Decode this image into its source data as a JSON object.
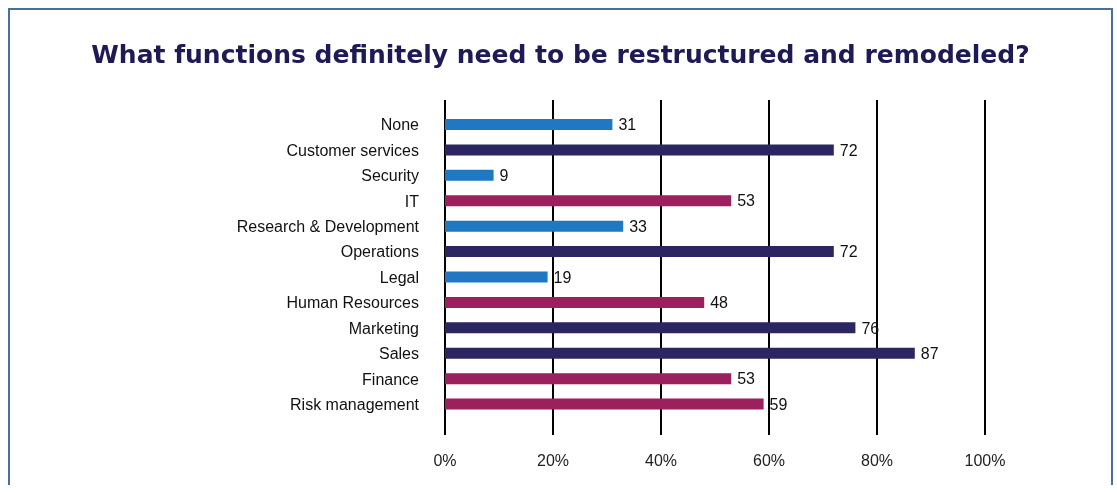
{
  "chart_data": {
    "type": "bar",
    "orientation": "horizontal",
    "title": "What functions definitely need to be restructured and remodeled?",
    "categories": [
      "None",
      "Customer services",
      "Security",
      "IT",
      "Research & Development",
      "Operations",
      "Legal",
      "Human Resources",
      "Marketing",
      "Sales",
      "Finance",
      "Risk management"
    ],
    "values": [
      31,
      72,
      9,
      53,
      33,
      72,
      19,
      48,
      76,
      87,
      53,
      59
    ],
    "colors": [
      "#1f78c1",
      "#2b2661",
      "#1f78c1",
      "#9c1f5e",
      "#1f78c1",
      "#2b2661",
      "#1f78c1",
      "#9c1f5e",
      "#2b2661",
      "#2b2661",
      "#9c1f5e",
      "#9c1f5e"
    ],
    "xlim": [
      0,
      100
    ],
    "xticks": [
      {
        "value": 0,
        "label": "0%"
      },
      {
        "value": 20,
        "label": "20%"
      },
      {
        "value": 40,
        "label": "40%"
      },
      {
        "value": 60,
        "label": "60%"
      },
      {
        "value": 80,
        "label": "80%"
      },
      {
        "value": 100,
        "label": "100%"
      }
    ],
    "grid": "x",
    "data_labels": true
  }
}
